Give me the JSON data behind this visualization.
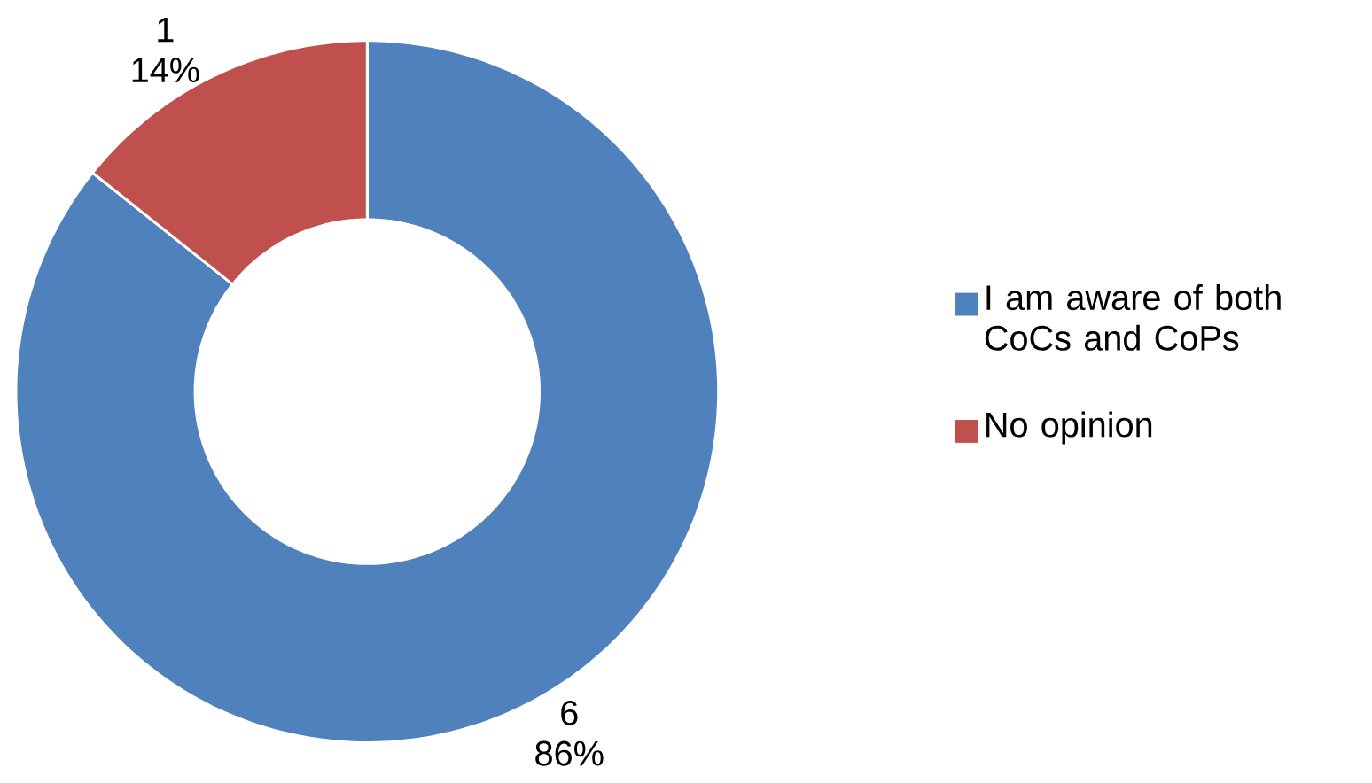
{
  "chart_data": {
    "type": "donut",
    "categories": [
      "I am aware of both CoCs and CoPs",
      "No opinion"
    ],
    "values": [
      6,
      1
    ],
    "colors": [
      "#4f81bd",
      "#c0504d"
    ],
    "value_labels": [
      "6 86%",
      "1 14%"
    ],
    "legend": "right"
  }
}
